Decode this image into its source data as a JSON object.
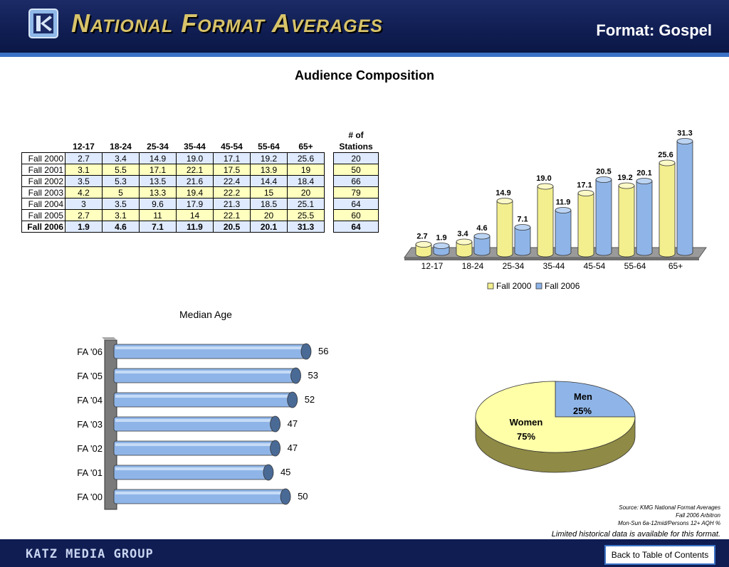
{
  "header": {
    "banner": "National Format Averages",
    "format_title": "Format: Gospel"
  },
  "page_title": "Audience Composition",
  "table": {
    "columns": [
      "12-17",
      "18-24",
      "25-34",
      "35-44",
      "45-54",
      "55-64",
      "65+"
    ],
    "stations_header_1": "# of",
    "stations_header_2": "Stations",
    "rows": [
      {
        "label": "Fall 2000",
        "values": [
          "2.7",
          "3.4",
          "14.9",
          "19.0",
          "17.1",
          "19.2",
          "25.6"
        ],
        "stations": "20"
      },
      {
        "label": "Fall 2001",
        "values": [
          "3.1",
          "5.5",
          "17.1",
          "22.1",
          "17.5",
          "13.9",
          "19"
        ],
        "stations": "50"
      },
      {
        "label": "Fall 2002",
        "values": [
          "3.5",
          "5.3",
          "13.5",
          "21.6",
          "22.4",
          "14.4",
          "18.4"
        ],
        "stations": "66"
      },
      {
        "label": "Fall 2003",
        "values": [
          "4.2",
          "5",
          "13.3",
          "19.4",
          "22.2",
          "15",
          "20"
        ],
        "stations": "79"
      },
      {
        "label": "Fall 2004",
        "values": [
          "3",
          "3.5",
          "9.6",
          "17.9",
          "21.3",
          "18.5",
          "25.1"
        ],
        "stations": "64"
      },
      {
        "label": "Fall 2005",
        "values": [
          "2.7",
          "3.1",
          "11",
          "14",
          "22.1",
          "20",
          "25.5"
        ],
        "stations": "60"
      },
      {
        "label": "Fall 2006",
        "values": [
          "1.9",
          "4.6",
          "7.1",
          "11.9",
          "20.5",
          "20.1",
          "31.3"
        ],
        "stations": "64"
      }
    ]
  },
  "colors": {
    "fall2000": "#f3ef8e",
    "fall2006": "#8fb5e8",
    "header_bg": "#0f1d52",
    "accent": "#3b72c6",
    "median_bar": "#8fb5e8",
    "men": "#8fb5e8",
    "women": "#ffffa8"
  },
  "chart_data": [
    {
      "type": "bar",
      "categories": [
        "12-17",
        "18-24",
        "25-34",
        "35-44",
        "45-54",
        "55-64",
        "65+"
      ],
      "series": [
        {
          "name": "Fall 2000",
          "values": [
            2.7,
            3.4,
            14.9,
            19.0,
            17.1,
            19.2,
            25.6
          ],
          "labels": [
            "2.7",
            "3.4",
            "14.9",
            "19.0",
            "17.1",
            "19.2",
            "25.6"
          ]
        },
        {
          "name": "Fall 2006",
          "values": [
            1.9,
            4.6,
            7.1,
            11.9,
            20.5,
            20.1,
            31.3
          ],
          "labels": [
            "1.9",
            "4.6",
            "7.1",
            "11.9",
            "20.5",
            "20.1",
            "31.3"
          ]
        }
      ],
      "title": "",
      "legend": "bottom",
      "ylim": [
        0,
        32
      ]
    },
    {
      "type": "bar",
      "orientation": "horizontal",
      "title": "Median Age",
      "categories": [
        "FA '06",
        "FA '05",
        "FA '04",
        "FA '03",
        "FA '02",
        "FA '01",
        "FA '00"
      ],
      "values": [
        56,
        53,
        52,
        47,
        47,
        45,
        50
      ],
      "xlim": [
        0,
        60
      ]
    },
    {
      "type": "pie",
      "slices": [
        {
          "name": "Men",
          "value": 25,
          "label": "25%"
        },
        {
          "name": "Women",
          "value": 75,
          "label": "75%"
        }
      ]
    }
  ],
  "source": {
    "line1": "Source:  KMG National Format Averages",
    "line2": "Fall 2006 Arbitron",
    "line3": "Mon-Sun 6a-12mid/Persons 12+ AQH %"
  },
  "note": "Limited historical data is available for this format.",
  "footer": {
    "company": "KATZ MEDIA GROUP",
    "back_button": "Back to Table of Contents"
  }
}
